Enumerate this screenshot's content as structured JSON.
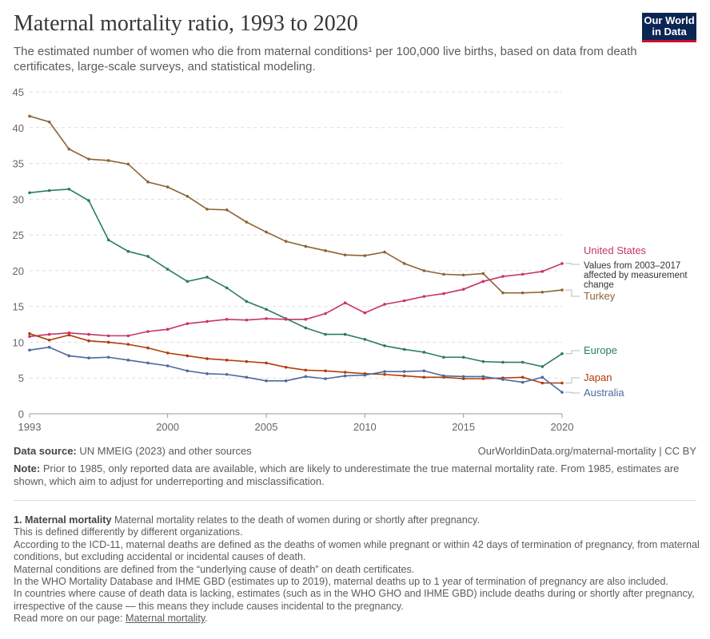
{
  "header": {
    "title": "Maternal mortality ratio, 1993 to 2020",
    "subtitle": "The estimated number of women who die from maternal conditions¹ per 100,000 live births, based on data from death certificates, large-scale surveys, and statistical modeling.",
    "logo": "Our World in Data"
  },
  "chart_data": {
    "type": "line",
    "x": [
      1993,
      1994,
      1995,
      1996,
      1997,
      1998,
      1999,
      2000,
      2001,
      2002,
      2003,
      2004,
      2005,
      2006,
      2007,
      2008,
      2009,
      2010,
      2011,
      2012,
      2013,
      2014,
      2015,
      2016,
      2017,
      2018,
      2019,
      2020
    ],
    "xlim": [
      1993,
      2020
    ],
    "ylim": [
      0,
      45
    ],
    "yticks": [
      0,
      5,
      10,
      15,
      20,
      25,
      30,
      35,
      40,
      45
    ],
    "xticks": [
      1993,
      2000,
      2005,
      2010,
      2015,
      2020
    ],
    "grid": "horizontal dashed",
    "legend": "right, inline labels",
    "series": [
      {
        "name": "Turkey",
        "color": "#8c6433",
        "values": [
          41.6,
          40.8,
          37.0,
          35.6,
          35.4,
          34.9,
          32.4,
          31.7,
          30.4,
          28.6,
          28.5,
          26.8,
          25.4,
          24.1,
          23.4,
          22.8,
          22.2,
          22.1,
          22.6,
          21.0,
          20.0,
          19.5,
          19.4,
          19.6,
          16.9,
          16.9,
          17.0,
          17.3
        ]
      },
      {
        "name": "Europe",
        "color": "#2b7d5a",
        "values": [
          30.9,
          31.2,
          31.4,
          29.8,
          24.3,
          22.7,
          22.0,
          20.2,
          18.5,
          19.1,
          17.6,
          15.7,
          14.6,
          13.3,
          12.0,
          11.1,
          11.1,
          10.4,
          9.5,
          9.0,
          8.6,
          7.9,
          7.9,
          7.3,
          7.2,
          7.2,
          6.6,
          8.4
        ]
      },
      {
        "name": "United States",
        "color": "#c8336a",
        "values": [
          10.8,
          11.1,
          11.3,
          11.1,
          10.9,
          10.9,
          11.5,
          11.8,
          12.6,
          12.9,
          13.2,
          13.1,
          13.3,
          13.2,
          13.2,
          14.0,
          15.5,
          14.1,
          15.3,
          15.8,
          16.4,
          16.8,
          17.4,
          18.5,
          19.2,
          19.5,
          19.9,
          21.0
        ]
      },
      {
        "name": "Japan",
        "color": "#b13c0c",
        "values": [
          11.2,
          10.3,
          11.0,
          10.2,
          10.0,
          9.7,
          9.2,
          8.5,
          8.1,
          7.7,
          7.5,
          7.3,
          7.1,
          6.5,
          6.1,
          6.0,
          5.8,
          5.6,
          5.5,
          5.3,
          5.1,
          5.1,
          4.9,
          4.9,
          5.0,
          5.1,
          4.3,
          4.3
        ]
      },
      {
        "name": "Australia",
        "color": "#4c6a9c",
        "values": [
          8.9,
          9.3,
          8.1,
          7.8,
          7.9,
          7.5,
          7.1,
          6.7,
          6.0,
          5.6,
          5.5,
          5.1,
          4.6,
          4.6,
          5.2,
          4.9,
          5.3,
          5.4,
          5.9,
          5.9,
          6.0,
          5.3,
          5.2,
          5.2,
          4.8,
          4.4,
          5.1,
          3.0
        ]
      }
    ],
    "annotation": "Values from 2003–2017 affected by measurement change",
    "annotation_lines": [
      "Values from 2003–2017",
      "affected by measurement",
      "change"
    ]
  },
  "footer": {
    "source_label": "Data source:",
    "source": "UN MMEIG (2023) and other sources",
    "license": "OurWorldinData.org/maternal-mortality | CC BY",
    "note_label": "Note:",
    "note": "Prior to 1985, only reported data are available, which are likely to underestimate the true maternal mortality rate. From 1985, estimates are shown, which aim to adjust for underreporting and misclassification."
  },
  "footnote": {
    "heading": "1. Maternal mortality",
    "lines": [
      "Maternal mortality relates to the death of women during or shortly after pregnancy.",
      "This is defined differently by different organizations.",
      "According to the ICD-11, maternal deaths are defined as the deaths of women while pregnant or within 42 days of termination of pregnancy, from maternal conditions, but excluding accidental or incidental causes of death.",
      "Maternal conditions are defined from the “underlying cause of death” on death certificates.",
      "In the WHO Mortality Database and IHME GBD (estimates up to 2019), maternal deaths up to 1 year of termination of pregnancy are also included.",
      "In countries where cause of death data is lacking, estimates (such as in the WHO GHO and IHME GBD) include deaths during or shortly after pregnancy, irrespective of the cause — this means they include causes incidental to the pregnancy."
    ],
    "read_more": "Read more on our page:",
    "read_more_link": "Maternal mortality",
    "period": "."
  }
}
